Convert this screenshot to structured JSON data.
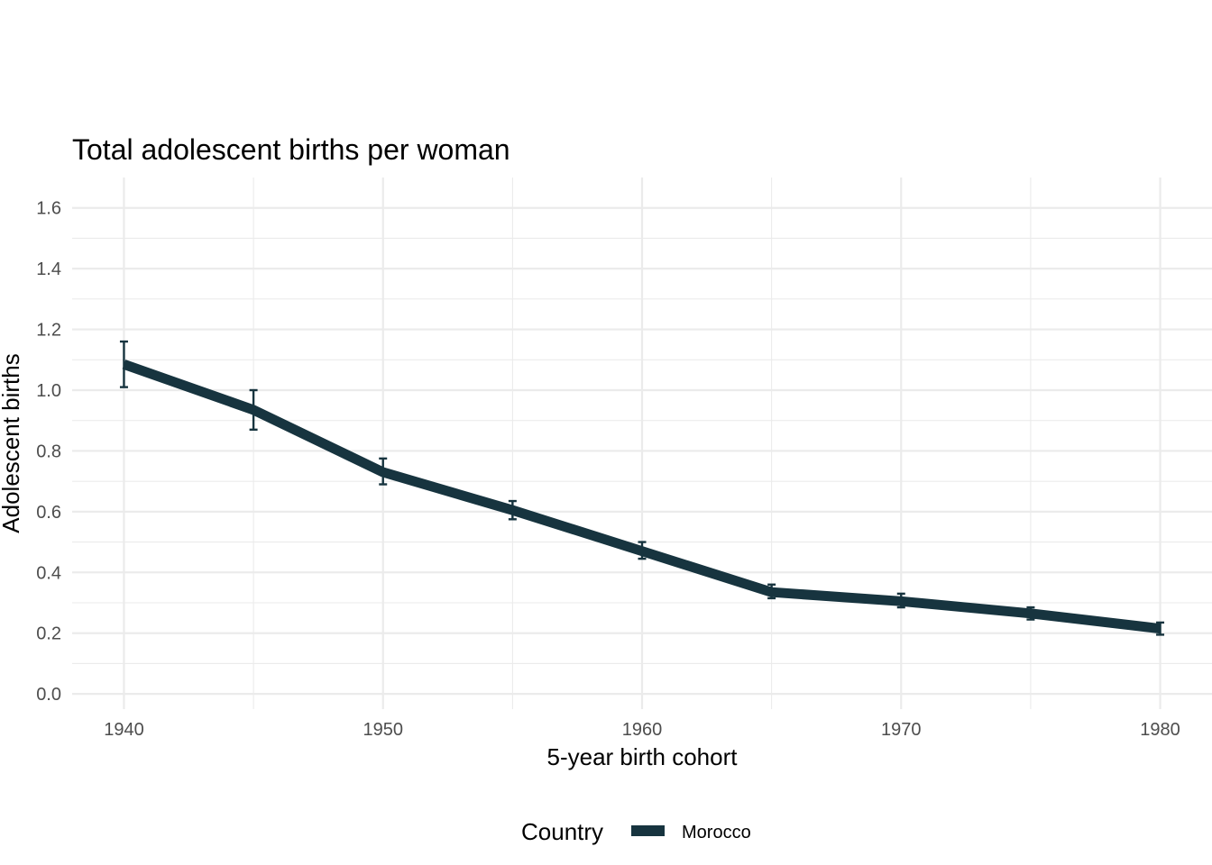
{
  "chart_data": {
    "type": "line",
    "title": "Total adolescent births per woman",
    "xlabel": "5-year birth cohort",
    "ylabel": "Adolescent births",
    "xlim": [
      1938,
      1982
    ],
    "ylim": [
      -0.05,
      1.7
    ],
    "x_ticks": [
      1940,
      1950,
      1960,
      1970,
      1980
    ],
    "x_minor_ticks": [
      1945,
      1955,
      1965,
      1975
    ],
    "y_ticks": [
      0.0,
      0.2,
      0.4,
      0.6,
      0.8,
      1.0,
      1.2,
      1.4,
      1.6
    ],
    "x_tick_labels": [
      "1940",
      "1950",
      "1960",
      "1970",
      "1980"
    ],
    "y_tick_labels": [
      "0.0",
      "0.2",
      "0.4",
      "0.6",
      "0.8",
      "1.0",
      "1.2",
      "1.4",
      "1.6"
    ],
    "grid": true,
    "legend": {
      "title": "Country",
      "position": "bottom"
    },
    "series": [
      {
        "name": "Morocco",
        "color": "#17343f",
        "x": [
          1940,
          1945,
          1950,
          1955,
          1960,
          1965,
          1970,
          1975,
          1980
        ],
        "y": [
          1.085,
          0.935,
          0.73,
          0.605,
          0.47,
          0.335,
          0.305,
          0.265,
          0.215
        ],
        "y_lower": [
          1.01,
          0.87,
          0.69,
          0.575,
          0.445,
          0.315,
          0.285,
          0.245,
          0.195
        ],
        "y_upper": [
          1.16,
          1.0,
          0.775,
          0.635,
          0.5,
          0.36,
          0.33,
          0.285,
          0.235
        ]
      }
    ]
  }
}
